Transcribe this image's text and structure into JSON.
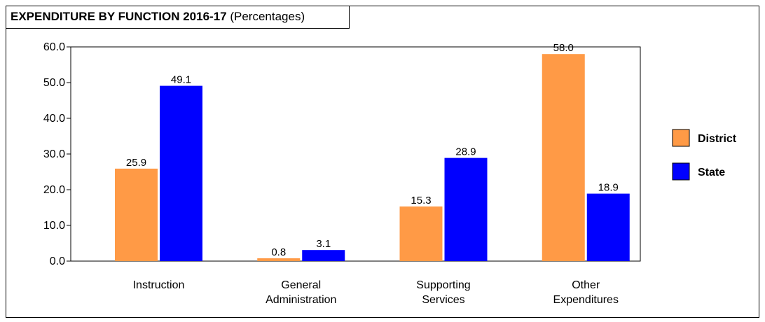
{
  "title": {
    "main": "EXPENDITURE BY FUNCTION 2016-17",
    "suffix": "(Percentages)"
  },
  "colors": {
    "district": "#FF9A46",
    "state": "#0000FF"
  },
  "chart_data": {
    "type": "bar",
    "title": "EXPENDITURE BY FUNCTION 2016-17 (Percentages)",
    "categories": [
      [
        "Instruction"
      ],
      [
        "General",
        "Administration"
      ],
      [
        "Supporting",
        "Services"
      ],
      [
        "Other",
        "Expenditures"
      ]
    ],
    "series": [
      {
        "name": "District",
        "color": "#FF9A46",
        "values": [
          25.9,
          0.8,
          15.3,
          58.0
        ],
        "labels": [
          "25.9",
          "0.8",
          "15.3",
          "58.0"
        ]
      },
      {
        "name": "State",
        "color": "#0000FF",
        "values": [
          49.1,
          3.1,
          28.9,
          18.9
        ],
        "labels": [
          "49.1",
          "3.1",
          "28.9",
          "18.9"
        ]
      }
    ],
    "ylim": [
      0,
      60
    ],
    "yticks": [
      "0.0",
      "10.0",
      "20.0",
      "30.0",
      "40.0",
      "50.0",
      "60.0"
    ],
    "grid": false,
    "legend": "right"
  }
}
